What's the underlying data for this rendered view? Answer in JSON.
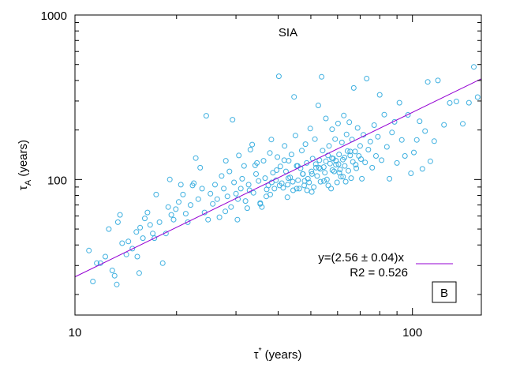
{
  "chart_data": {
    "type": "scatter",
    "title": "SIA",
    "xlabel": "τ* (years)",
    "xlabel_main": "τ",
    "xlabel_sup": "*",
    "xlabel_units": " (years)",
    "ylabel_main": "τ",
    "ylabel_sub": "A",
    "ylabel_units": " (years)",
    "x_scale": "log",
    "y_scale": "log",
    "xlim": [
      10,
      160
    ],
    "ylim": [
      15,
      1000
    ],
    "x_ticks": [
      {
        "value": 10,
        "label": "10"
      },
      {
        "value": 100,
        "label": "100"
      }
    ],
    "y_ticks": [
      {
        "value": 100,
        "label": "100"
      },
      {
        "value": 1000,
        "label": "1000"
      }
    ],
    "grid": false,
    "marker_color": "#3fb0e0",
    "fit_color": "#9400d3",
    "fit": {
      "slope": 2.56,
      "x_range": [
        10,
        160
      ]
    },
    "legend": {
      "line1": "y=(2.56 ± 0.04)x",
      "line2": "R2 = 0.526",
      "placement": "bottom-right"
    },
    "panel_label": "B",
    "points": [
      [
        11.0,
        37
      ],
      [
        11.3,
        24
      ],
      [
        11.6,
        31
      ],
      [
        11.9,
        31
      ],
      [
        12.3,
        34
      ],
      [
        12.6,
        50
      ],
      [
        12.9,
        28
      ],
      [
        13.1,
        26
      ],
      [
        13.3,
        23
      ],
      [
        13.4,
        55
      ],
      [
        13.6,
        61
      ],
      [
        13.8,
        41
      ],
      [
        14.2,
        35
      ],
      [
        14.4,
        42
      ],
      [
        14.8,
        38
      ],
      [
        15.2,
        48
      ],
      [
        15.3,
        34
      ],
      [
        15.5,
        27
      ],
      [
        15.6,
        51
      ],
      [
        15.9,
        44
      ],
      [
        16.1,
        58
      ],
      [
        16.4,
        63
      ],
      [
        16.7,
        53
      ],
      [
        17.0,
        47
      ],
      [
        17.2,
        44
      ],
      [
        17.4,
        81
      ],
      [
        17.8,
        55
      ],
      [
        18.2,
        31
      ],
      [
        18.6,
        47
      ],
      [
        18.9,
        68
      ],
      [
        19.1,
        100
      ],
      [
        19.3,
        61
      ],
      [
        19.6,
        57
      ],
      [
        19.9,
        66
      ],
      [
        20.3,
        73
      ],
      [
        20.6,
        93
      ],
      [
        20.9,
        81
      ],
      [
        21.3,
        62
      ],
      [
        21.6,
        55
      ],
      [
        22.0,
        70
      ],
      [
        22.3,
        92
      ],
      [
        22.5,
        95
      ],
      [
        22.8,
        135
      ],
      [
        23.2,
        76
      ],
      [
        23.5,
        118
      ],
      [
        23.8,
        88
      ],
      [
        24.2,
        63
      ],
      [
        24.5,
        244
      ],
      [
        24.8,
        57
      ],
      [
        25.2,
        82
      ],
      [
        25.6,
        71
      ],
      [
        26.0,
        93
      ],
      [
        26.4,
        76
      ],
      [
        26.8,
        59
      ],
      [
        27.2,
        105
      ],
      [
        27.6,
        88
      ],
      [
        28.0,
        130
      ],
      [
        28.3,
        79
      ],
      [
        28.7,
        112
      ],
      [
        29.0,
        68
      ],
      [
        29.3,
        231
      ],
      [
        29.6,
        96
      ],
      [
        30.0,
        82
      ],
      [
        30.3,
        57
      ],
      [
        30.6,
        140
      ],
      [
        31.0,
        88
      ],
      [
        31.3,
        101
      ],
      [
        31.7,
        121
      ],
      [
        32.0,
        74
      ],
      [
        32.4,
        67
      ],
      [
        32.7,
        93
      ],
      [
        33.1,
        152
      ],
      [
        33.5,
        163
      ],
      [
        33.8,
        83
      ],
      [
        34.2,
        122
      ],
      [
        34.6,
        126
      ],
      [
        35.0,
        98
      ],
      [
        35.4,
        72
      ],
      [
        35.8,
        68
      ],
      [
        36.2,
        130
      ],
      [
        36.6,
        102
      ],
      [
        37.0,
        87
      ],
      [
        37.4,
        92
      ],
      [
        37.8,
        145
      ],
      [
        38.2,
        175
      ],
      [
        38.6,
        110
      ],
      [
        39.0,
        88
      ],
      [
        39.4,
        99
      ],
      [
        39.8,
        137
      ],
      [
        40.2,
        424
      ],
      [
        40.6,
        120
      ],
      [
        41.0,
        95
      ],
      [
        41.4,
        89
      ],
      [
        41.8,
        160
      ],
      [
        42.2,
        112
      ],
      [
        42.6,
        78
      ],
      [
        43.0,
        130
      ],
      [
        43.4,
        103
      ],
      [
        43.8,
        142
      ],
      [
        44.2,
        97
      ],
      [
        44.6,
        318
      ],
      [
        45.0,
        185
      ],
      [
        45.4,
        121
      ],
      [
        45.8,
        99
      ],
      [
        46.2,
        88
      ],
      [
        46.6,
        117
      ],
      [
        47.0,
        150
      ],
      [
        47.4,
        108
      ],
      [
        47.8,
        92
      ],
      [
        48.2,
        164
      ],
      [
        48.6,
        126
      ],
      [
        49.0,
        101
      ],
      [
        49.4,
        96
      ],
      [
        49.8,
        204
      ],
      [
        50.2,
        112
      ],
      [
        50.6,
        134
      ],
      [
        51.0,
        90
      ],
      [
        51.4,
        176
      ],
      [
        51.8,
        118
      ],
      [
        52.2,
        105
      ],
      [
        52.6,
        282
      ],
      [
        53.0,
        131
      ],
      [
        53.4,
        97
      ],
      [
        53.8,
        421
      ],
      [
        54.2,
        150
      ],
      [
        54.6,
        119
      ],
      [
        55.0,
        110
      ],
      [
        55.4,
        235
      ],
      [
        55.8,
        100
      ],
      [
        56.2,
        140
      ],
      [
        56.6,
        160
      ],
      [
        57.0,
        125
      ],
      [
        57.4,
        88
      ],
      [
        57.8,
        202
      ],
      [
        58.2,
        134
      ],
      [
        58.6,
        112
      ],
      [
        59.0,
        176
      ],
      [
        59.4,
        130
      ],
      [
        59.8,
        96
      ],
      [
        60.2,
        219
      ],
      [
        60.6,
        142
      ],
      [
        61.0,
        115
      ],
      [
        61.4,
        104
      ],
      [
        61.8,
        168
      ],
      [
        62.2,
        132
      ],
      [
        62.6,
        245
      ],
      [
        63.0,
        121
      ],
      [
        63.4,
        97
      ],
      [
        63.8,
        188
      ],
      [
        64.2,
        149
      ],
      [
        64.6,
        113
      ],
      [
        65.0,
        223
      ],
      [
        65.4,
        140
      ],
      [
        65.8,
        102
      ],
      [
        66.2,
        175
      ],
      [
        66.6,
        128
      ],
      [
        67.0,
        360
      ],
      [
        67.6,
        148
      ],
      [
        68.2,
        117
      ],
      [
        68.8,
        206
      ],
      [
        69.4,
        139
      ],
      [
        70.0,
        160
      ],
      [
        70.8,
        101
      ],
      [
        71.6,
        187
      ],
      [
        72.4,
        127
      ],
      [
        73.2,
        411
      ],
      [
        74.0,
        152
      ],
      [
        75.0,
        170
      ],
      [
        76.0,
        118
      ],
      [
        77.0,
        214
      ],
      [
        78.0,
        139
      ],
      [
        79.0,
        182
      ],
      [
        80.0,
        327
      ],
      [
        81.0,
        131
      ],
      [
        82.5,
        248
      ],
      [
        84.0,
        158
      ],
      [
        85.5,
        101
      ],
      [
        87.0,
        193
      ],
      [
        88.5,
        224
      ],
      [
        90.0,
        126
      ],
      [
        91.5,
        293
      ],
      [
        93.0,
        174
      ],
      [
        95.0,
        139
      ],
      [
        97.0,
        247
      ],
      [
        99.0,
        109
      ],
      [
        101.0,
        146
      ],
      [
        103.0,
        174
      ],
      [
        105.0,
        226
      ],
      [
        107.0,
        116
      ],
      [
        109.0,
        197
      ],
      [
        111.0,
        392
      ],
      [
        113.0,
        129
      ],
      [
        116.0,
        171
      ],
      [
        119.0,
        400
      ],
      [
        124.0,
        215
      ],
      [
        129.0,
        292
      ],
      [
        135.0,
        298
      ],
      [
        141.0,
        218
      ],
      [
        147.0,
        293
      ],
      [
        152.0,
        484
      ],
      [
        156.0,
        317
      ],
      [
        38.3,
        96
      ],
      [
        41.7,
        131
      ],
      [
        44.3,
        86
      ],
      [
        47.3,
        108
      ],
      [
        50.3,
        84
      ],
      [
        53.3,
        116
      ],
      [
        56.3,
        92
      ],
      [
        59.3,
        123
      ],
      [
        62.3,
        104
      ],
      [
        34.4,
        108
      ],
      [
        36.9,
        79
      ],
      [
        39.6,
        114
      ],
      [
        42.7,
        93
      ],
      [
        45.7,
        121
      ],
      [
        48.7,
        86
      ],
      [
        51.7,
        124
      ],
      [
        54.7,
        98
      ],
      [
        57.7,
        135
      ],
      [
        60.7,
        110
      ],
      [
        27.9,
        64
      ],
      [
        30.4,
        76
      ],
      [
        32.9,
        86
      ],
      [
        35.4,
        71
      ],
      [
        37.9,
        81
      ],
      [
        40.4,
        92
      ],
      [
        42.9,
        102
      ],
      [
        45.4,
        88
      ],
      [
        47.9,
        98
      ],
      [
        50.4,
        108
      ],
      [
        52.9,
        118
      ],
      [
        55.4,
        129
      ],
      [
        57.9,
        114
      ],
      [
        60.4,
        124
      ],
      [
        62.9,
        136
      ],
      [
        65.4,
        148
      ],
      [
        67.9,
        123
      ],
      [
        70.4,
        133
      ]
    ]
  }
}
